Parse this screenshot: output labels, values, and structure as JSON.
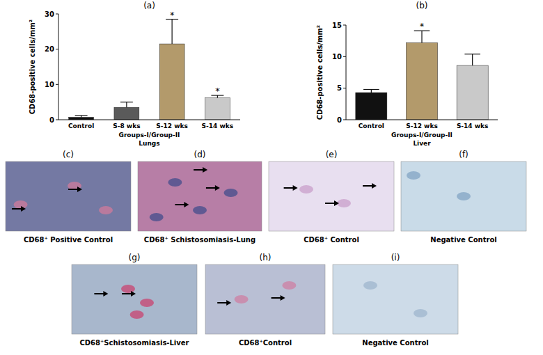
{
  "chart_data": [
    {
      "type": "bar",
      "title": "(a)",
      "y_label": "CD68-positive cells/mm²",
      "x_label": "Groups-I/Group-II",
      "subtitle": "Lungs",
      "categories": [
        "Control",
        "S-8 wks",
        "S-12 wks",
        "S-14 wks"
      ],
      "values": [
        0.7,
        3.5,
        21.5,
        6.2
      ],
      "errors": [
        0.5,
        1.5,
        7,
        0.7
      ],
      "colors": [
        "#111111",
        "#5a5a5a",
        "#b39a6b",
        "#c9c9c9"
      ],
      "ylim": [
        0,
        30
      ],
      "yticks": [
        0,
        10,
        20,
        30
      ],
      "grid": false,
      "annotations": [
        {
          "text": "*",
          "category": "S-12 wks"
        },
        {
          "text": "*",
          "category": "S-14 wks"
        }
      ]
    },
    {
      "type": "bar",
      "title": "(b)",
      "y_label": "CD68-positive cells/mm²",
      "x_label": "Groups-I/Group-II",
      "subtitle": "Liver",
      "categories": [
        "Control",
        "S-12 wks",
        "S-14 wks"
      ],
      "values": [
        4.3,
        12.2,
        8.6
      ],
      "errors": [
        0.5,
        1.9,
        1.8
      ],
      "colors": [
        "#111111",
        "#b39a6b",
        "#c9c9c9"
      ],
      "ylim": [
        0,
        15
      ],
      "yticks": [
        0,
        5,
        10,
        15
      ],
      "grid": false,
      "annotations": [
        {
          "text": "*",
          "category": "S-12 wks"
        }
      ]
    }
  ],
  "image_panels": [
    {
      "label": "(c)",
      "caption": "CD68⁺ Positive Control"
    },
    {
      "label": "(d)",
      "caption": "CD68⁺ Schistosomiasis-Lung"
    },
    {
      "label": "(e)",
      "caption": "CD68⁺ Control"
    },
    {
      "label": "(f)",
      "caption": "Negative Control"
    },
    {
      "label": "(g)",
      "caption": "CD68⁺Schistosomiasis-Liver"
    },
    {
      "label": "(h)",
      "caption": "CD68⁺Control"
    },
    {
      "label": "(i)",
      "caption": "Negative Control"
    }
  ]
}
